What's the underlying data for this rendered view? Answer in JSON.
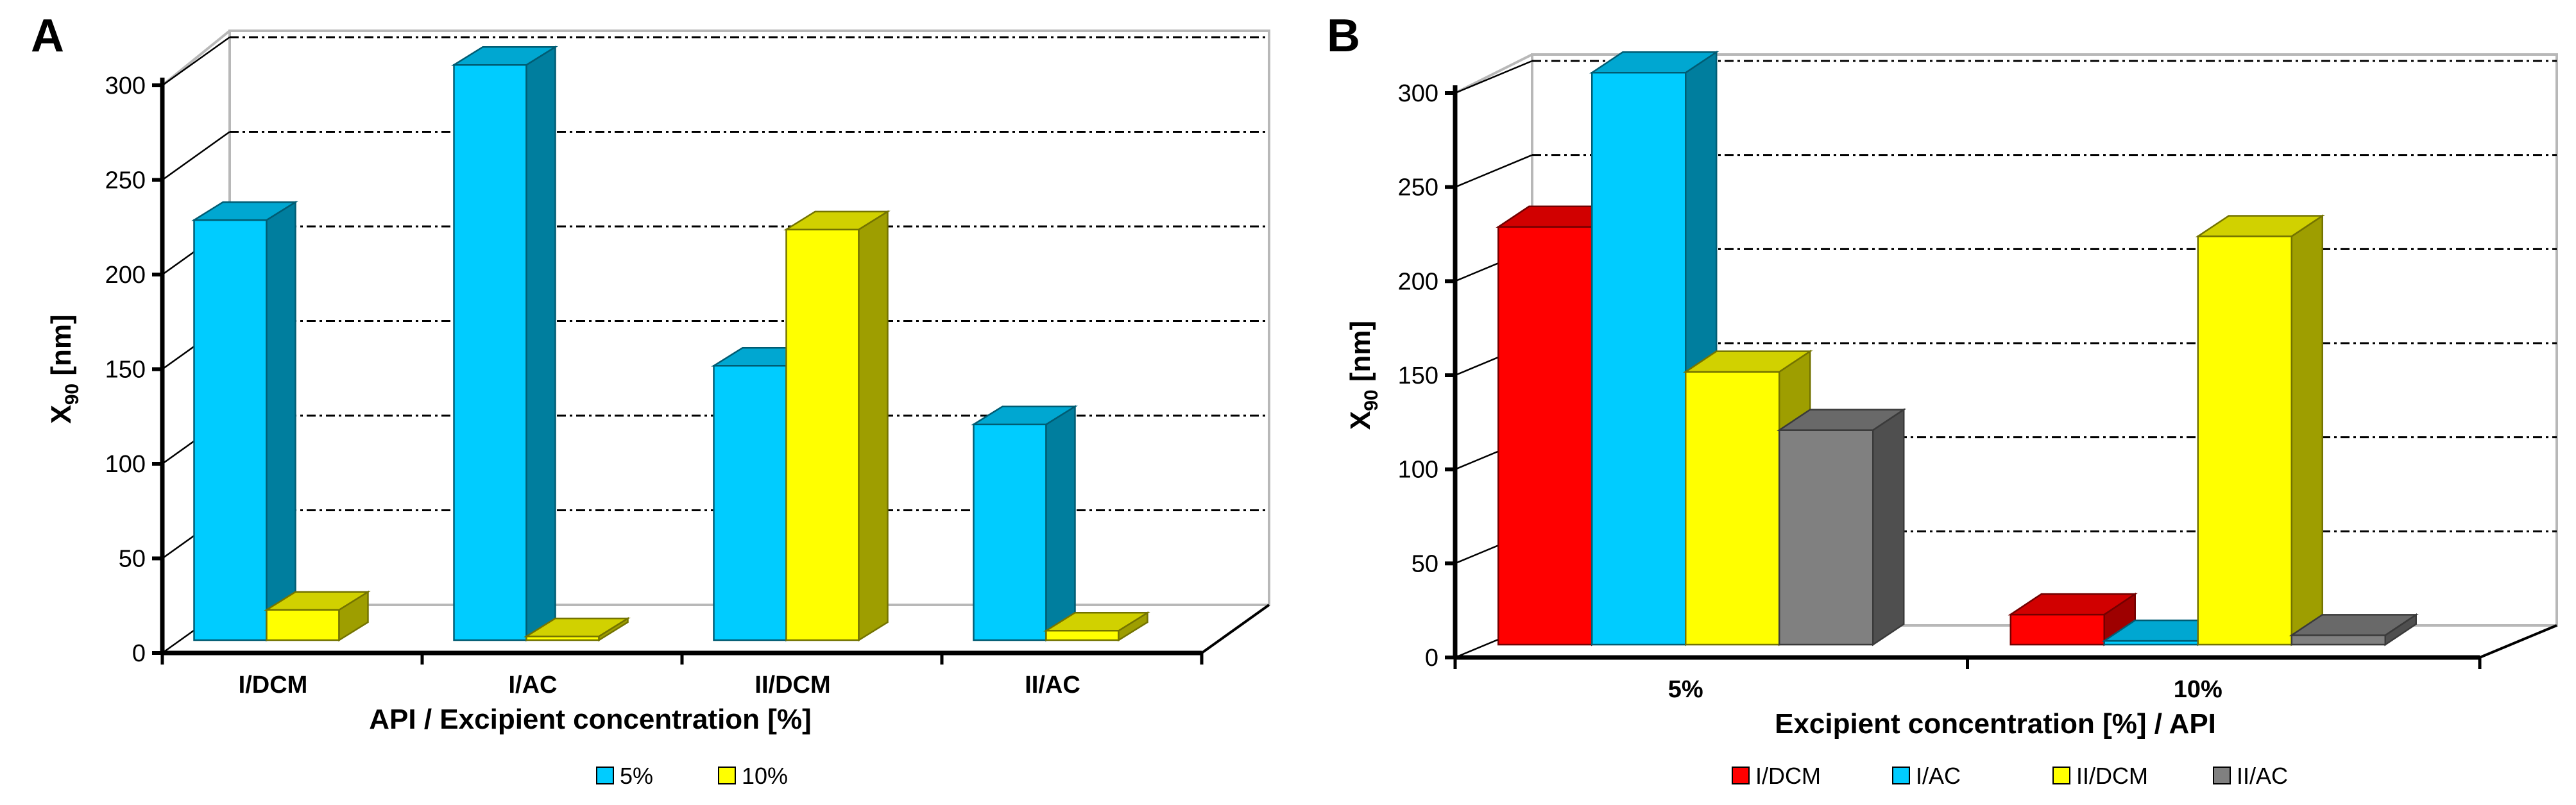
{
  "chart_data": [
    {
      "panel": "A",
      "type": "bar",
      "ylabel_main": "X",
      "ylabel_sub": "90",
      "ylabel_unit": " [nm]",
      "xlabel": "API / Excipient concentration [%]",
      "ylim": [
        0,
        300
      ],
      "yticks": [
        0,
        50,
        100,
        150,
        200,
        250,
        300
      ],
      "categories": [
        "I/DCM",
        "I/AC",
        "II/DCM",
        "II/AC"
      ],
      "series": [
        {
          "name": "5%",
          "color": "#00CCFF",
          "values": [
            222,
            304,
            145,
            114
          ]
        },
        {
          "name": "10%",
          "color": "#FFFF00",
          "values": [
            16,
            2,
            217,
            5
          ]
        }
      ]
    },
    {
      "panel": "B",
      "type": "bar",
      "ylabel_main": "X",
      "ylabel_sub": "90",
      "ylabel_unit": " [nm]",
      "xlabel": "Excipient concentration [%] / API",
      "ylim": [
        0,
        300
      ],
      "yticks": [
        0,
        50,
        100,
        150,
        200,
        250,
        300
      ],
      "categories": [
        "5%",
        "10%"
      ],
      "series": [
        {
          "name": "I/DCM",
          "color": "#FF0000",
          "values": [
            222,
            16
          ]
        },
        {
          "name": "I/AC",
          "color": "#00CCFF",
          "values": [
            304,
            2
          ]
        },
        {
          "name": "II/DCM",
          "color": "#FFFF00",
          "values": [
            145,
            217
          ]
        },
        {
          "name": "II/AC",
          "color": "#808080",
          "values": [
            114,
            5
          ]
        }
      ]
    }
  ]
}
